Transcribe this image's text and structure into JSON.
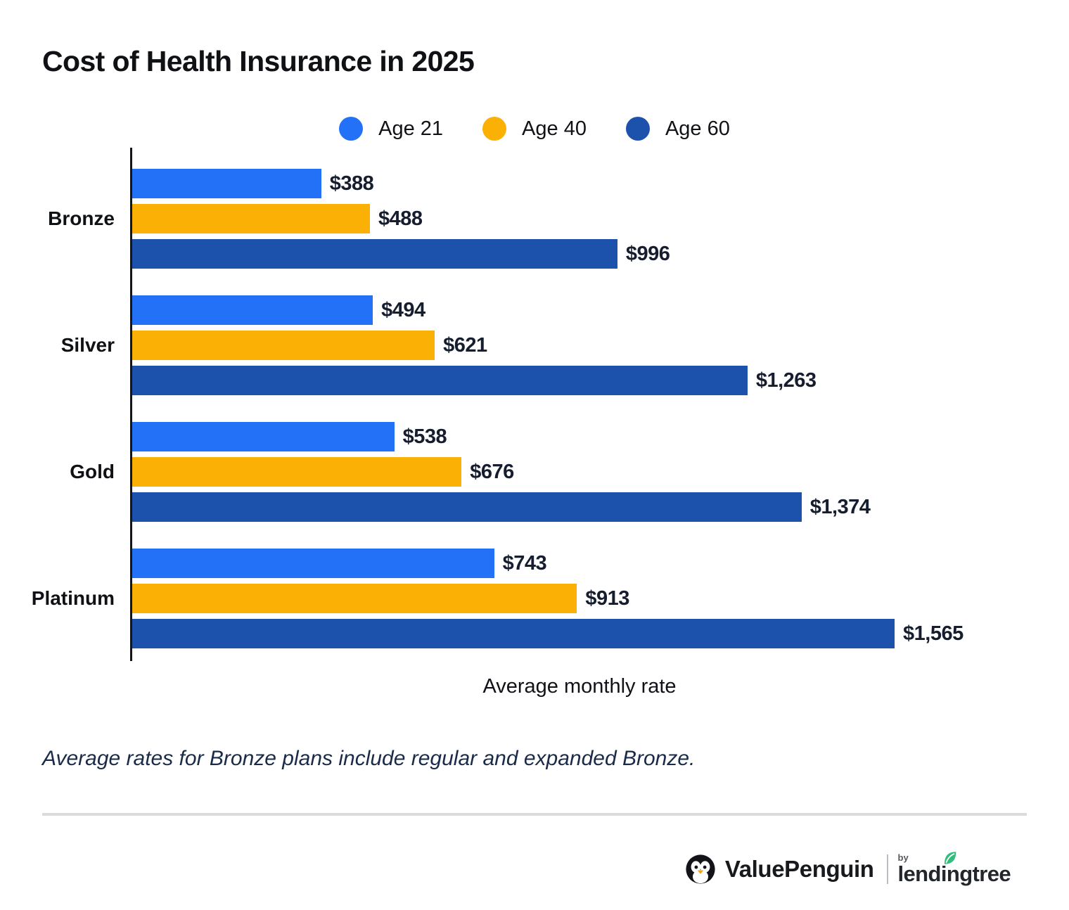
{
  "title": "Cost of Health Insurance in 2025",
  "legend": [
    {
      "label": "Age 21",
      "color": "#2271F6"
    },
    {
      "label": "Age 40",
      "color": "#FAB005"
    },
    {
      "label": "Age 60",
      "color": "#1C52AC"
    }
  ],
  "chart_data": {
    "type": "bar",
    "orientation": "horizontal",
    "title": "Cost of Health Insurance in 2025",
    "xlabel": "Average monthly rate",
    "categories": [
      "Bronze",
      "Silver",
      "Gold",
      "Platinum"
    ],
    "series": [
      {
        "name": "Age 21",
        "color": "#2271F6",
        "values": [
          388,
          494,
          538,
          743
        ],
        "labels": [
          "$388",
          "$494",
          "$538",
          "$743"
        ]
      },
      {
        "name": "Age 40",
        "color": "#FAB005",
        "values": [
          488,
          621,
          676,
          913
        ],
        "labels": [
          "$488",
          "$621",
          "$676",
          "$913"
        ]
      },
      {
        "name": "Age 60",
        "color": "#1C52AC",
        "values": [
          996,
          1263,
          1374,
          1565
        ],
        "labels": [
          "$996",
          "$1,263",
          "$1,374",
          "$1,565"
        ]
      }
    ],
    "xlim": [
      0,
      1565
    ],
    "grid": false,
    "legend_position": "top",
    "value_labels_shown": true
  },
  "footnote": "Average rates for Bronze plans include regular and expanded Bronze.",
  "footer": {
    "valuepenguin_label": "ValuePenguin",
    "by_label": "by",
    "lendingtree_label": "lendingtree",
    "leaf_color": "#2FBE7C"
  }
}
